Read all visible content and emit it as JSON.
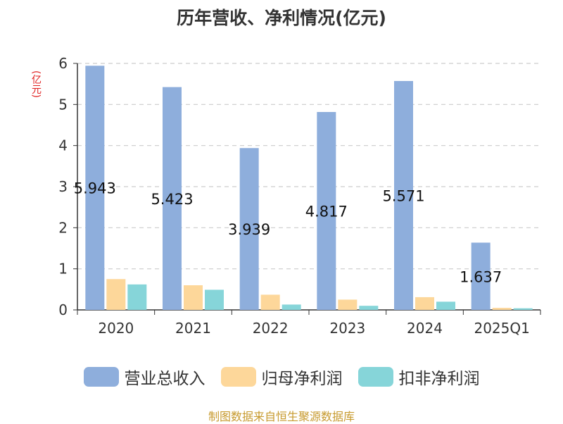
{
  "title": "历年营收、净利情况(亿元)",
  "unit": "(亿元)",
  "source": "制图数据来自恒生聚源数据库",
  "chart_data": {
    "type": "bar",
    "title": "历年营收、净利情况(亿元)",
    "xlabel": "",
    "ylabel": "(亿元)",
    "ylim": [
      0,
      6
    ],
    "yticks": [
      0,
      1,
      2,
      3,
      4,
      5,
      6
    ],
    "grid": true,
    "legend_position": "bottom",
    "categories": [
      "2020",
      "2021",
      "2022",
      "2023",
      "2024",
      "2025Q1"
    ],
    "series": [
      {
        "name": "营业总收入",
        "color": "#8eaedc",
        "values": [
          5.943,
          5.423,
          3.939,
          4.817,
          5.571,
          1.637
        ],
        "labels": [
          "5.943",
          "5.423",
          "3.939",
          "4.817",
          "5.571",
          "1.637"
        ]
      },
      {
        "name": "归母净利润",
        "color": "#fdd79a",
        "values": [
          0.75,
          0.6,
          0.37,
          0.25,
          0.31,
          0.05
        ]
      },
      {
        "name": "扣非净利润",
        "color": "#86d5d9",
        "values": [
          0.62,
          0.49,
          0.13,
          0.1,
          0.2,
          0.04
        ]
      }
    ]
  }
}
